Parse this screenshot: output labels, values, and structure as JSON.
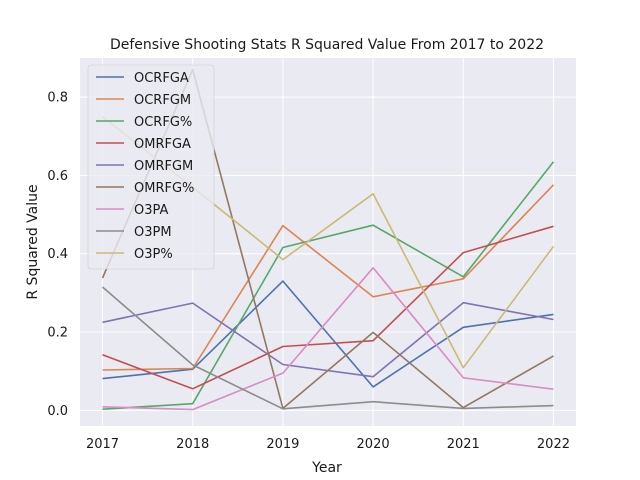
{
  "chart_data": {
    "type": "line",
    "title": "Defensive Shooting Stats R Squared Value From 2017 to 2022",
    "xlabel": "Year",
    "ylabel": "R Squared Value",
    "x": [
      2017,
      2018,
      2019,
      2020,
      2021,
      2022
    ],
    "x_tick_labels": [
      "2017",
      "2018",
      "2019",
      "2020",
      "2021",
      "2022"
    ],
    "y_ticks": [
      0.0,
      0.2,
      0.4,
      0.6,
      0.8
    ],
    "y_tick_labels": [
      "0.0",
      "0.2",
      "0.4",
      "0.6",
      "0.8"
    ],
    "xlim": [
      2016.75,
      2022.25
    ],
    "ylim": [
      -0.04,
      0.9
    ],
    "grid": true,
    "legend_position": "upper-left",
    "series": [
      {
        "name": "OCRFGA",
        "color": "#4c72b0",
        "values": [
          0.081,
          0.105,
          0.33,
          0.06,
          0.212,
          0.245
        ]
      },
      {
        "name": "OCRFGM",
        "color": "#dd8452",
        "values": [
          0.103,
          0.107,
          0.472,
          0.29,
          0.336,
          0.576
        ]
      },
      {
        "name": "OCRFG%",
        "color": "#55a868",
        "values": [
          0.003,
          0.017,
          0.416,
          0.473,
          0.341,
          0.635
        ]
      },
      {
        "name": "OMRFGA",
        "color": "#c44e52",
        "values": [
          0.142,
          0.055,
          0.163,
          0.178,
          0.403,
          0.47
        ]
      },
      {
        "name": "OMRFGM",
        "color": "#8172b3",
        "values": [
          0.225,
          0.274,
          0.117,
          0.086,
          0.275,
          0.232
        ]
      },
      {
        "name": "OMRFG%",
        "color": "#937860",
        "values": [
          0.338,
          0.87,
          0.005,
          0.199,
          0.007,
          0.139
        ]
      },
      {
        "name": "O3PA",
        "color": "#da8bc3",
        "values": [
          0.009,
          0.002,
          0.095,
          0.364,
          0.083,
          0.054
        ]
      },
      {
        "name": "O3PM",
        "color": "#8c8c8c",
        "values": [
          0.315,
          0.116,
          0.004,
          0.022,
          0.005,
          0.012
        ]
      },
      {
        "name": "O3P%",
        "color": "#ccb974",
        "values": [
          0.75,
          0.57,
          0.385,
          0.553,
          0.109,
          0.419
        ]
      }
    ]
  }
}
